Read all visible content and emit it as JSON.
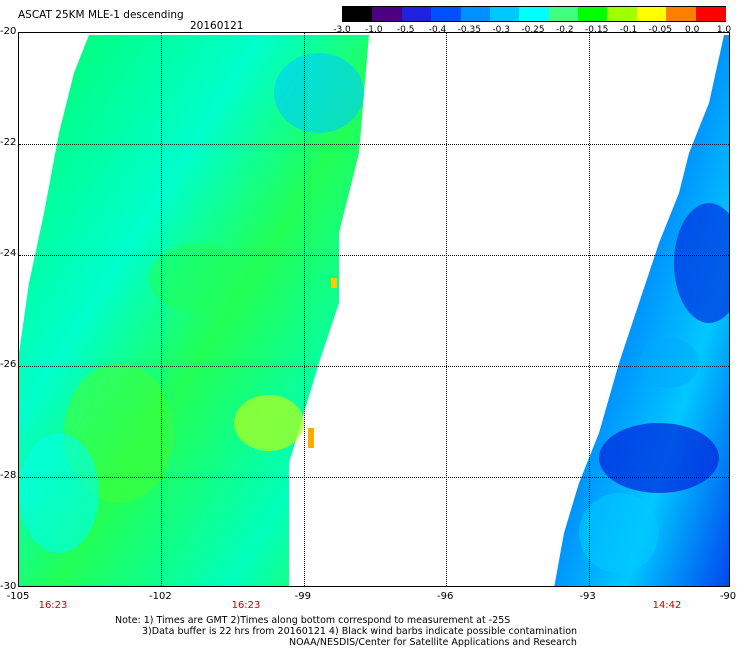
{
  "header": {
    "title": "ASCAT 25KM MLE-1 descending",
    "date": "20160121"
  },
  "colorbar": {
    "labels": [
      "-3.0",
      "-1.0",
      "-0.5",
      "-0.4",
      "-0.35",
      "-0.3",
      "-0.25",
      "-0.2",
      "-0.15",
      "-0.1",
      "-0.05",
      "0.0",
      "1.0"
    ],
    "colors": [
      "#000000",
      "#4b0082",
      "#2020e0",
      "#0050ff",
      "#0090ff",
      "#00c8ff",
      "#00ffff",
      "#40ff80",
      "#00ff00",
      "#a0ff00",
      "#ffff00",
      "#ff8000",
      "#ff0000"
    ]
  },
  "map": {
    "y_labels": [
      "-20",
      "-22",
      "-24",
      "-26",
      "-28",
      "-30"
    ],
    "x_labels": [
      "-105",
      "-102",
      "-99",
      "-96",
      "-93",
      "-90"
    ],
    "times": [
      "16:23",
      "16:23",
      "14:42"
    ],
    "lon_range": [
      -105,
      -90
    ],
    "lat_range": [
      -30,
      -20
    ]
  },
  "notes": {
    "line1": "Note: 1) Times are GMT 2)Times along bottom correspond to measurement at -25S",
    "line2": "3)Data buffer is 22 hrs from 20160121 4) Black wind barbs indicate possible contamination",
    "line3": "NOAA/NESDIS/Center for Satellite Applications and Research"
  }
}
